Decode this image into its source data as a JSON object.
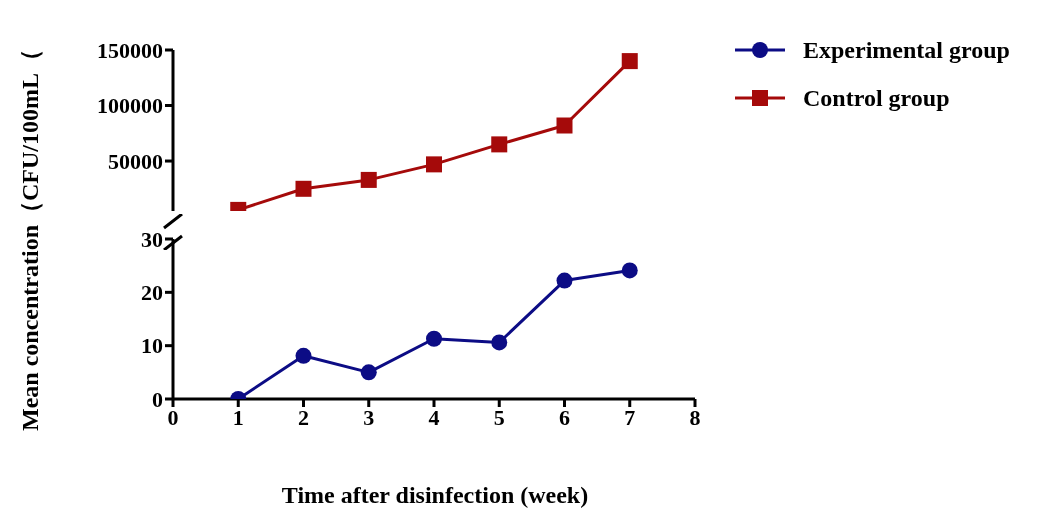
{
  "chart_data": [
    {
      "type": "line",
      "ylabel": "Mean concentration（CFU/100mL（",
      "x": [
        1,
        2,
        3,
        4,
        5,
        6,
        7
      ],
      "xlim": [
        0,
        8
      ],
      "ylim": [
        5000,
        150000
      ],
      "yticks": [
        50000,
        100000,
        150000
      ],
      "tick_labels": "y",
      "legend": "right",
      "grid": false,
      "marker": "square",
      "series": [
        {
          "name": "Control group",
          "color": "#a50a0a",
          "values": [
            6000,
            25000,
            33000,
            47000,
            65000,
            82000,
            140000
          ]
        }
      ]
    },
    {
      "type": "line",
      "xlabel": "Time after disinfection (week)",
      "x": [
        1,
        2,
        3,
        4,
        5,
        6,
        7
      ],
      "xlim": [
        0,
        8
      ],
      "xticks": [
        0,
        1,
        2,
        3,
        4,
        5,
        6,
        7,
        8
      ],
      "ylim": [
        0,
        30
      ],
      "yticks": [
        0,
        10,
        20,
        30
      ],
      "legend": "right",
      "grid": false,
      "marker": "circle",
      "series": [
        {
          "name": "Experimental group",
          "color": "#0c0c85",
          "values": [
            0,
            8.1,
            5.0,
            11.3,
            10.6,
            22.2,
            24.1
          ]
        }
      ]
    }
  ]
}
